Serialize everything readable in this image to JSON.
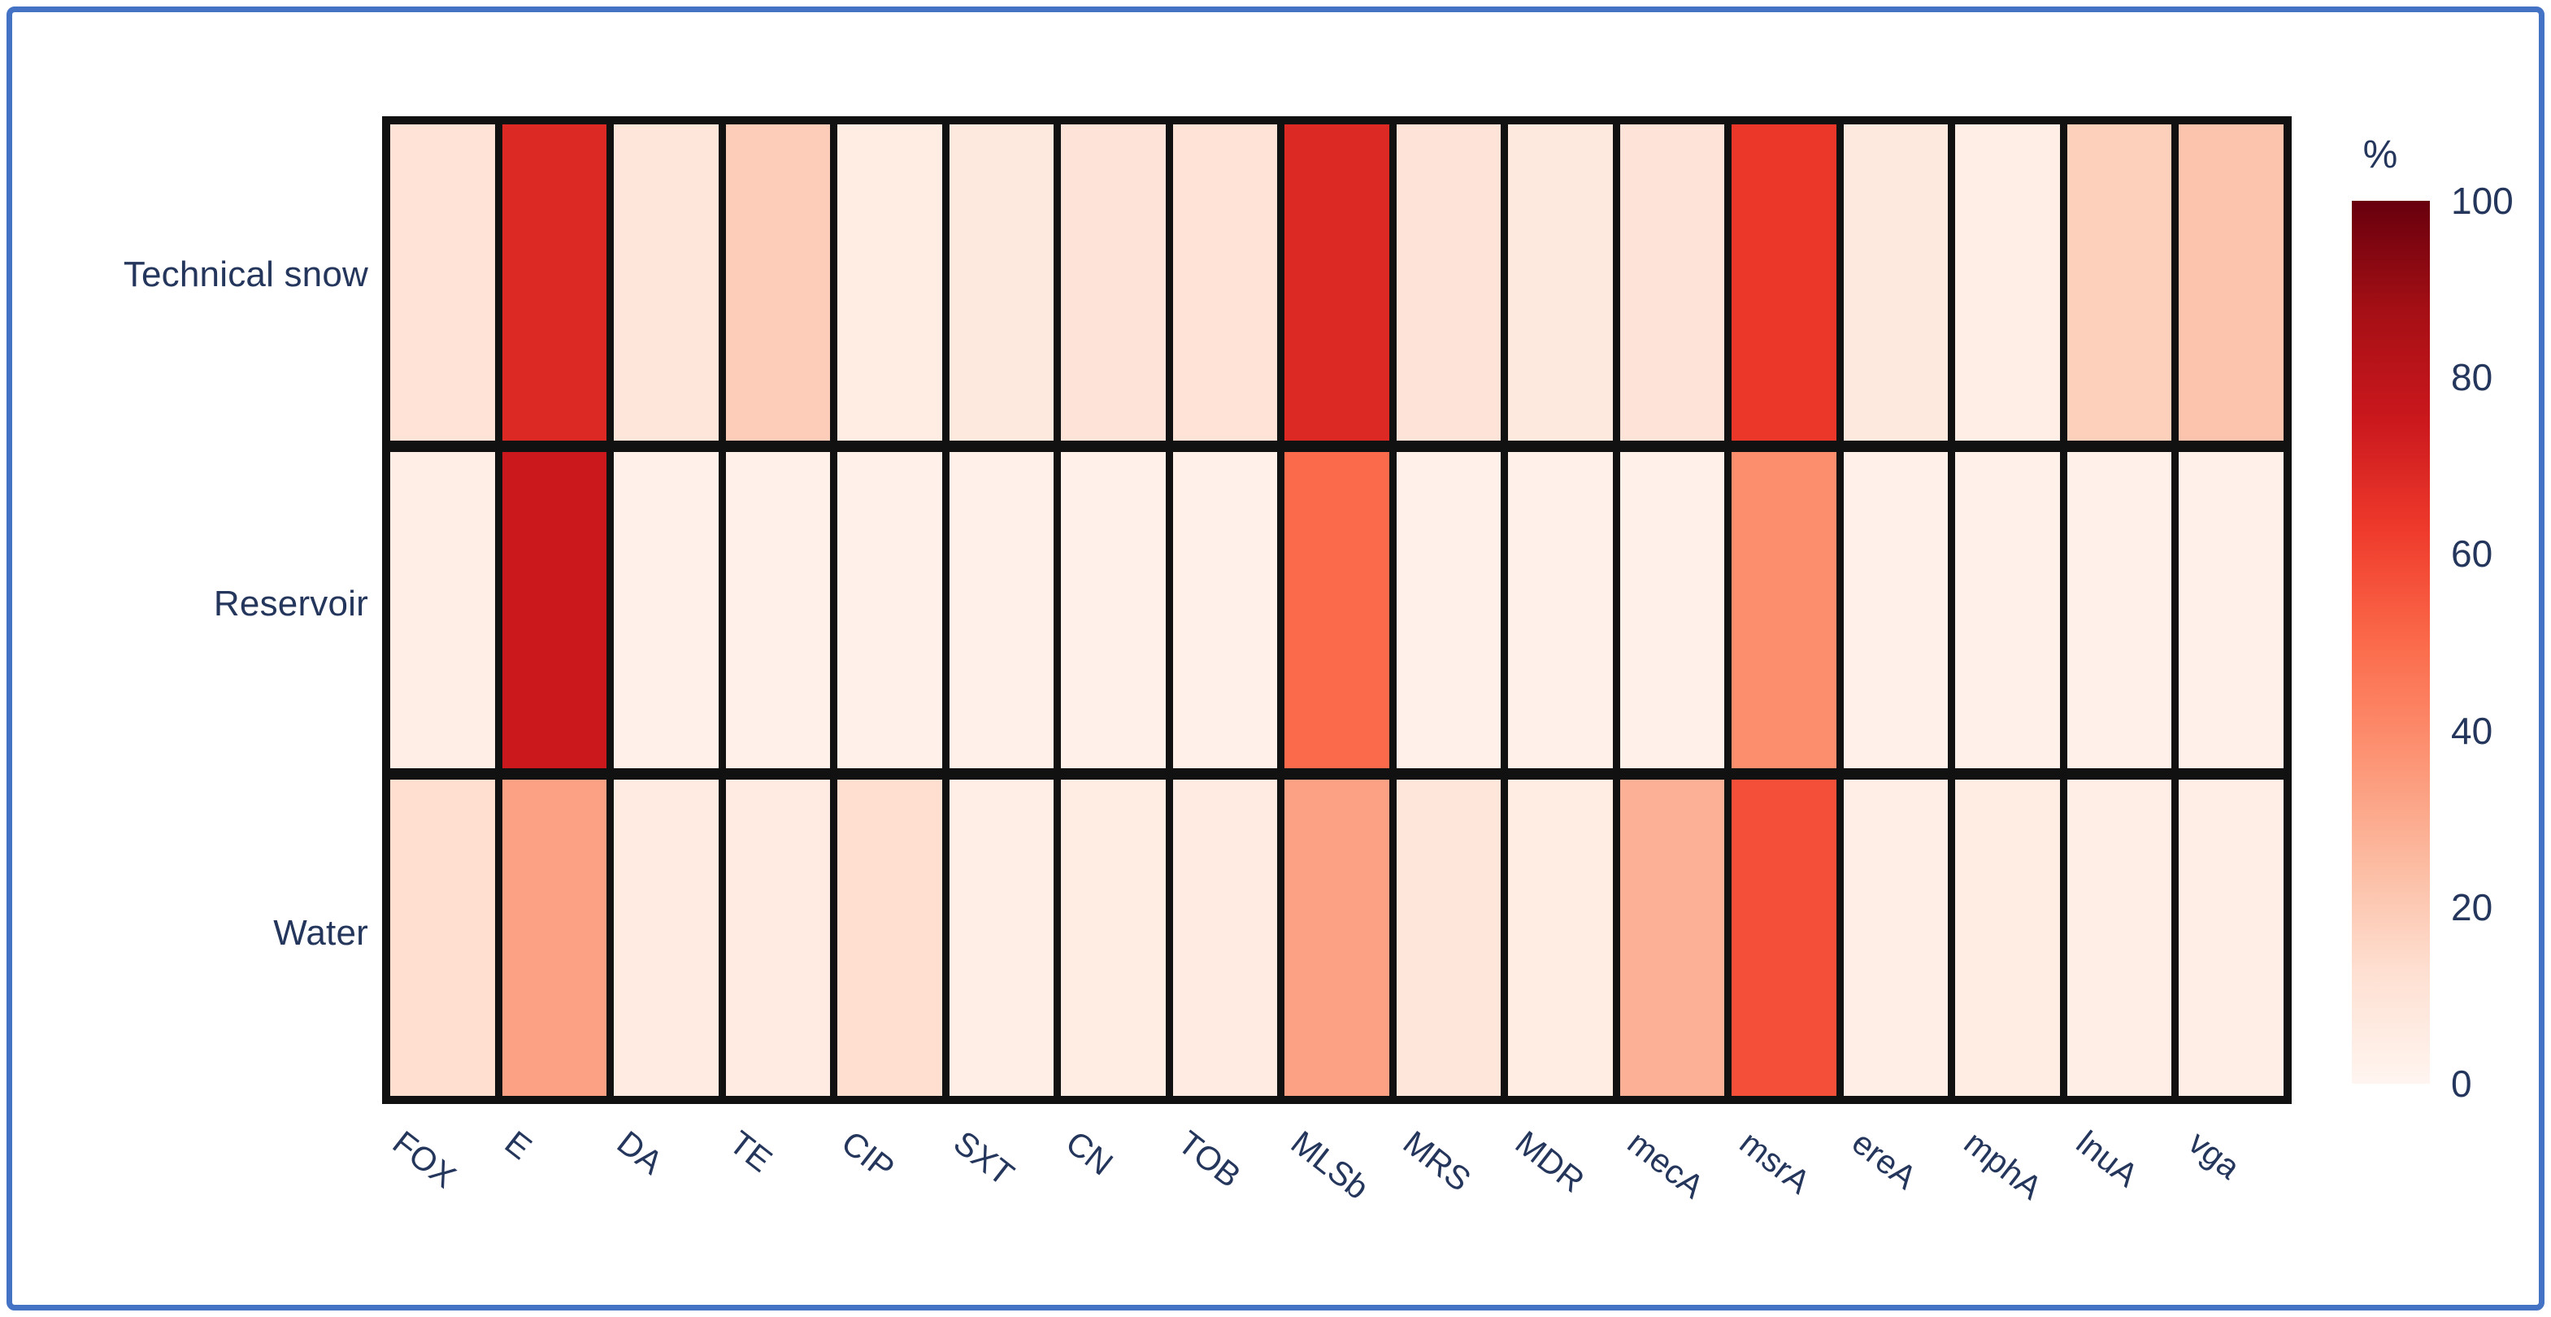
{
  "chart_data": {
    "type": "heatmap",
    "title": "",
    "xlabel": "",
    "ylabel": "",
    "categories": [
      "FOX",
      "E",
      "DA",
      "TE",
      "CIP",
      "SXT",
      "CN",
      "TOB",
      "MLSb",
      "MRS",
      "MDR",
      "mecA",
      "msrA",
      "ereA",
      "mphA",
      "lnuA",
      "vga"
    ],
    "rows": [
      {
        "label": "Technical snow",
        "values": [
          11,
          69,
          9,
          19,
          5,
          7,
          10,
          11,
          69,
          10,
          7,
          10,
          64,
          7,
          4,
          18,
          22
        ]
      },
      {
        "label": "Reservoir",
        "values": [
          4,
          75,
          3,
          3,
          3,
          3,
          3,
          3,
          50,
          3,
          3,
          3,
          39,
          3,
          3,
          3,
          3
        ]
      },
      {
        "label": "Water",
        "values": [
          13,
          33,
          6,
          6,
          13,
          4,
          5,
          6,
          33,
          9,
          5,
          28,
          57,
          4,
          5,
          4,
          4
        ]
      }
    ],
    "value_range": [
      0,
      100
    ],
    "grid": "thick black cell borders",
    "legend_position": "right-colorbar",
    "colorbar": {
      "label": "%",
      "ticks": [
        100,
        80,
        60,
        40,
        20,
        0
      ]
    },
    "colorscale": [
      [
        0.0,
        "#fff5f0"
      ],
      [
        0.125,
        "#fee0d2"
      ],
      [
        0.25,
        "#fcbba1"
      ],
      [
        0.375,
        "#fc9272"
      ],
      [
        0.5,
        "#fb6a4a"
      ],
      [
        0.625,
        "#ef3b2c"
      ],
      [
        0.75,
        "#cb181d"
      ],
      [
        0.875,
        "#a50f15"
      ],
      [
        1.0,
        "#67000d"
      ]
    ]
  },
  "colors": {
    "frame_border": "#4472c4",
    "grid_line": "#111111",
    "label_text": "#24365c",
    "background": "#ffffff"
  }
}
